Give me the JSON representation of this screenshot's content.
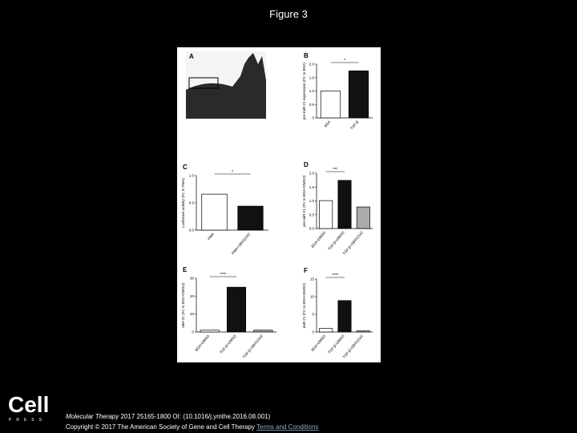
{
  "header": {
    "title": "Figure 3"
  },
  "figure": {
    "panels": [
      {
        "label": "A"
      },
      {
        "label": "B",
        "type": "bar",
        "ylabel": "pre-miR-21 expression (FC to BSA)",
        "categories": [
          "BSA",
          "TGF-β"
        ],
        "values": [
          1.0,
          1.75
        ],
        "colors": [
          "#ffffff",
          "#111111"
        ],
        "ylim": [
          0,
          2
        ],
        "yticks": [
          0,
          0.5,
          {
            "value": 1,
            "label": "1.0"
          },
          1.5,
          {
            "value": 2,
            "label": "2.0"
          }
        ],
        "significance": "*"
      },
      {
        "label": "C",
        "type": "bar",
        "ylabel": "Luciferase activity (FC to PMA)",
        "categories": [
          "PMA",
          "PMA+SB431542"
        ],
        "values": [
          0.66,
          0.44
        ],
        "colors": [
          "#ffffff",
          "#111111"
        ],
        "ylim": [
          0,
          1
        ],
        "yticks": [
          {
            "value": 0,
            "label": "0.0"
          },
          0.5,
          {
            "value": 1,
            "label": "1.0"
          }
        ],
        "significance": "*"
      },
      {
        "label": "D",
        "type": "bar",
        "ylabel": "pre-miR-21 (FC to BSA+DMSO)",
        "categories": [
          "BSA+DMSO",
          "TGF-β+DMSO",
          "TGF-β+SB431542"
        ],
        "values": [
          1.01,
          1.74,
          0.78
        ],
        "colors": [
          "#ffffff",
          "#111111",
          "#aaaaaa"
        ],
        "ylim": [
          0,
          2
        ],
        "yticks": [
          {
            "value": 0,
            "label": "0.0"
          },
          0.5,
          {
            "value": 1,
            "label": "1.0"
          },
          1.5,
          {
            "value": 2,
            "label": "2.0"
          }
        ],
        "significance": "***"
      },
      {
        "label": "E",
        "type": "bar",
        "ylabel": "miR-21 (FC to BSA+DMSO)",
        "categories": [
          "BSA+DMSO",
          "TGF-β+DMSO",
          "TGF-β+SB431542"
        ],
        "values": [
          1,
          25,
          1
        ],
        "colors": [
          "#ffffff",
          "#111111",
          "#aaaaaa"
        ],
        "ylim": [
          0,
          30
        ],
        "yticks": [
          0,
          10,
          20,
          30
        ],
        "significance": "****"
      },
      {
        "label": "F",
        "type": "bar",
        "ylabel": "miR-21 (FC to BSA+DMSO)",
        "categories": [
          "BSA+DMSO",
          "TGF-β+DMSO",
          "TGF-β+SB431542"
        ],
        "values": [
          1,
          8.9,
          0.3
        ],
        "colors": [
          "#ffffff",
          "#111111",
          "#aaaaaa"
        ],
        "ylim": [
          0,
          15
        ],
        "yticks": [
          0,
          5,
          10,
          15
        ],
        "significance": "****"
      }
    ]
  },
  "footer": {
    "logo": "Cell",
    "logo_sub": "PRESS",
    "journal": "Molecular Therapy",
    "citation": "2017 25165-1800 OI: (10.1016/j.ymthe.2016.08.001)",
    "copyright": "Copyright © 2017 The American Society of Gene and Cell Therapy",
    "link": "Terms and Conditions"
  }
}
